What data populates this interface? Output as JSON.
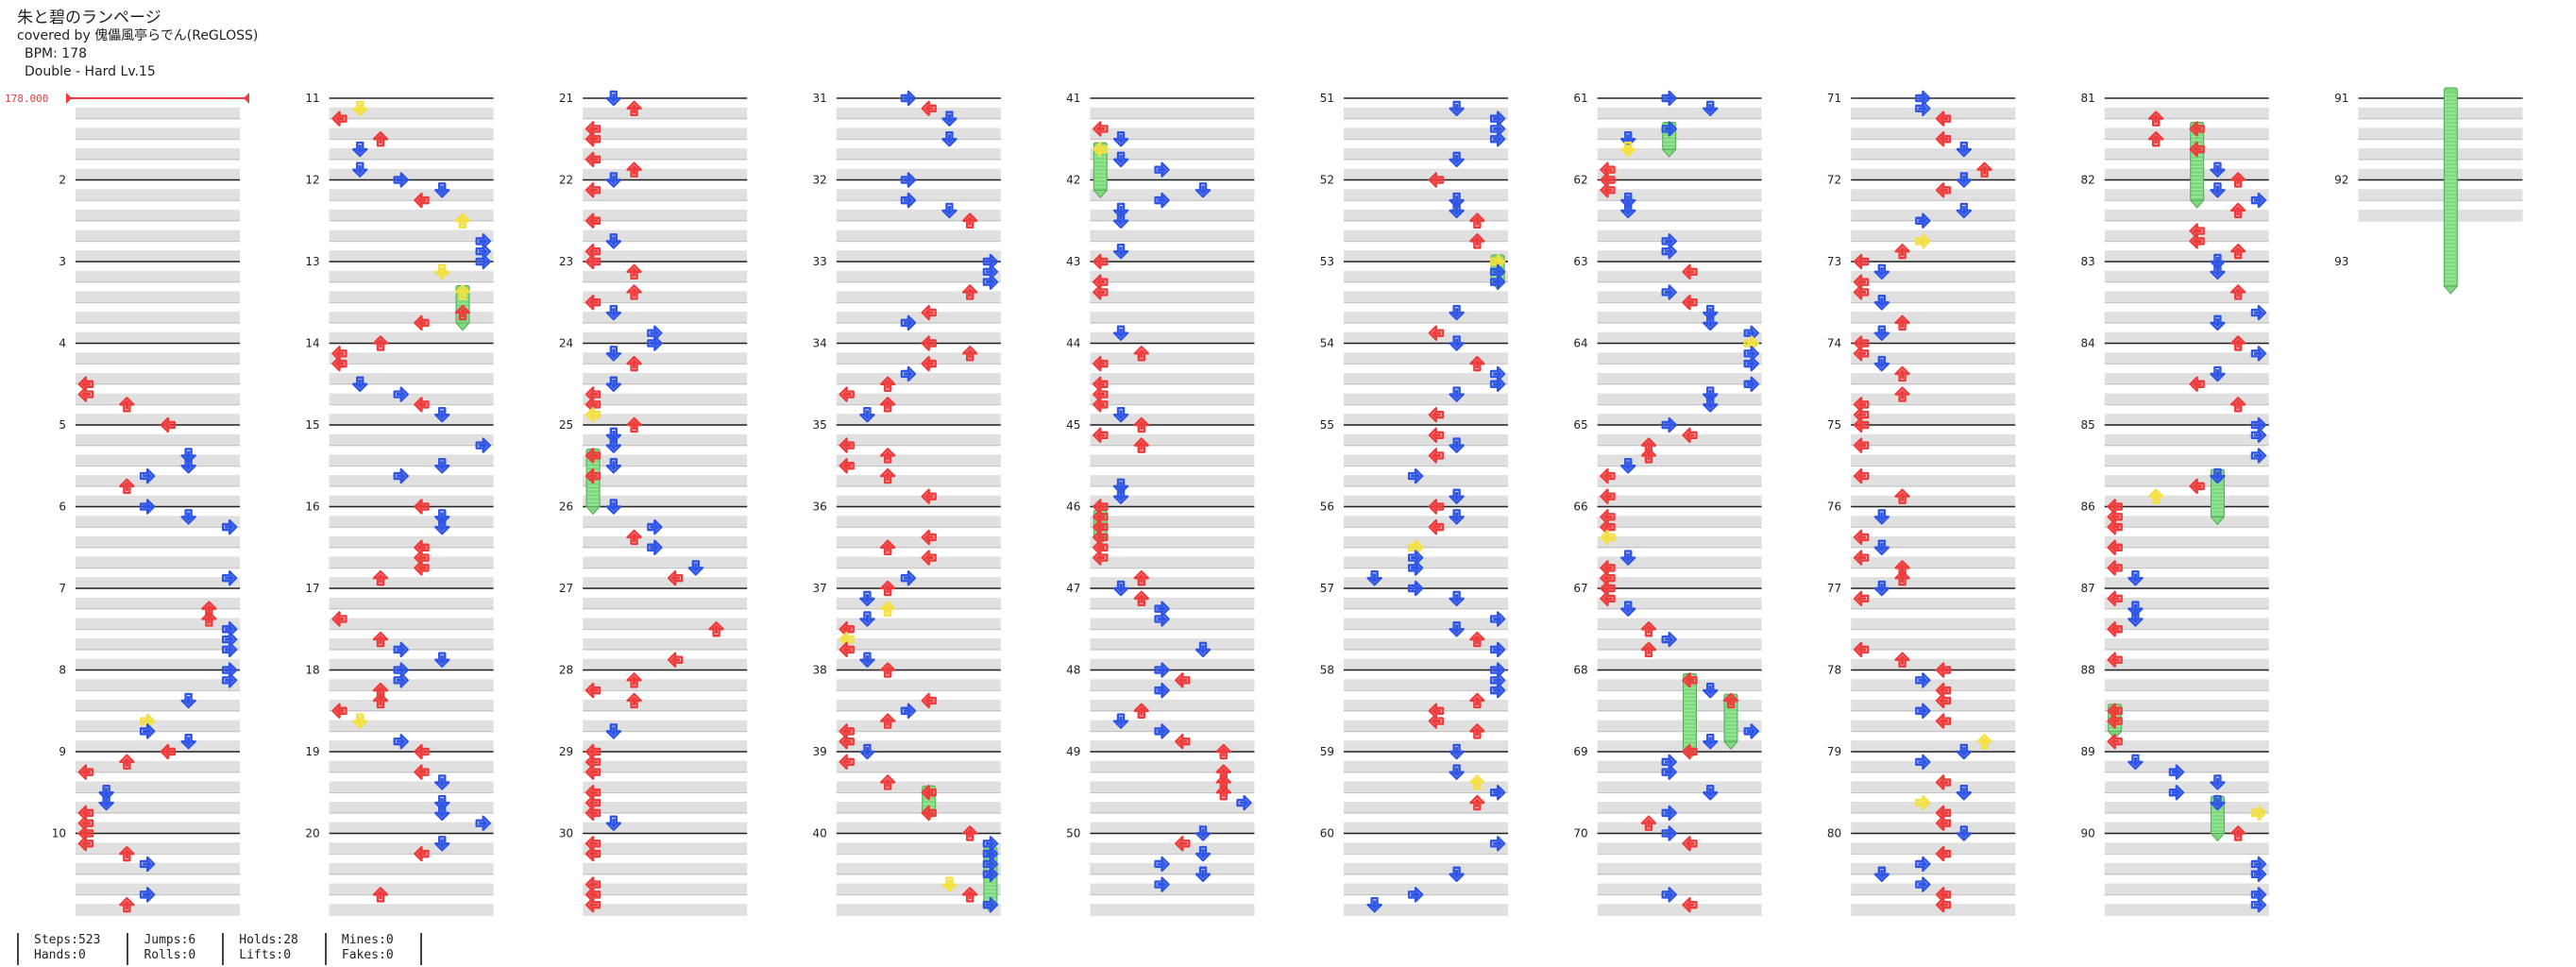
{
  "header": {
    "title": "朱と碧のランページ",
    "artist": "covered by 傀儡風亭らでん(ReGLOSS)",
    "bpm": "BPM: 178",
    "difficulty": "Double - Hard Lv.15"
  },
  "bpm_marker": "178.000",
  "stats": {
    "col1": [
      "Steps:523",
      "Hands:0"
    ],
    "col2": [
      "Jumps:6",
      "Rolls:0"
    ],
    "col3": [
      "Holds:28",
      "Lifts:0"
    ],
    "col4": [
      "Mines:0",
      "Fakes:0"
    ]
  },
  "measure_labels": [
    "2",
    "3",
    "4",
    "5",
    "6",
    "7",
    "8",
    "9",
    "10",
    "11",
    "12",
    "13",
    "14",
    "15",
    "16",
    "17",
    "18",
    "19",
    "20",
    "21",
    "22",
    "23",
    "24",
    "25",
    "26",
    "27",
    "28",
    "29",
    "30",
    "31",
    "32",
    "33",
    "34",
    "35",
    "36",
    "37",
    "38",
    "39",
    "40",
    "41",
    "42",
    "43",
    "44",
    "45",
    "46",
    "47",
    "48",
    "49",
    "50",
    "51",
    "52",
    "53",
    "54",
    "55",
    "56",
    "57",
    "58",
    "59",
    "60",
    "61",
    "62",
    "63",
    "64",
    "65",
    "66",
    "67",
    "68",
    "69",
    "70",
    "71",
    "72",
    "73",
    "74",
    "75",
    "76",
    "77",
    "78",
    "79",
    "80",
    "81",
    "82",
    "83",
    "84",
    "85",
    "86",
    "87",
    "88",
    "89",
    "90",
    "91",
    "92",
    "93"
  ],
  "colors": {
    "red": "#ef3b3b",
    "blue": "#2f55e6",
    "yellow": "#f4e040",
    "hold": "#7cd97c",
    "band": "#e0e0e0"
  },
  "icons": [
    "left-arrow-icon",
    "down-arrow-icon",
    "up-arrow-icon",
    "right-arrow-icon"
  ]
}
